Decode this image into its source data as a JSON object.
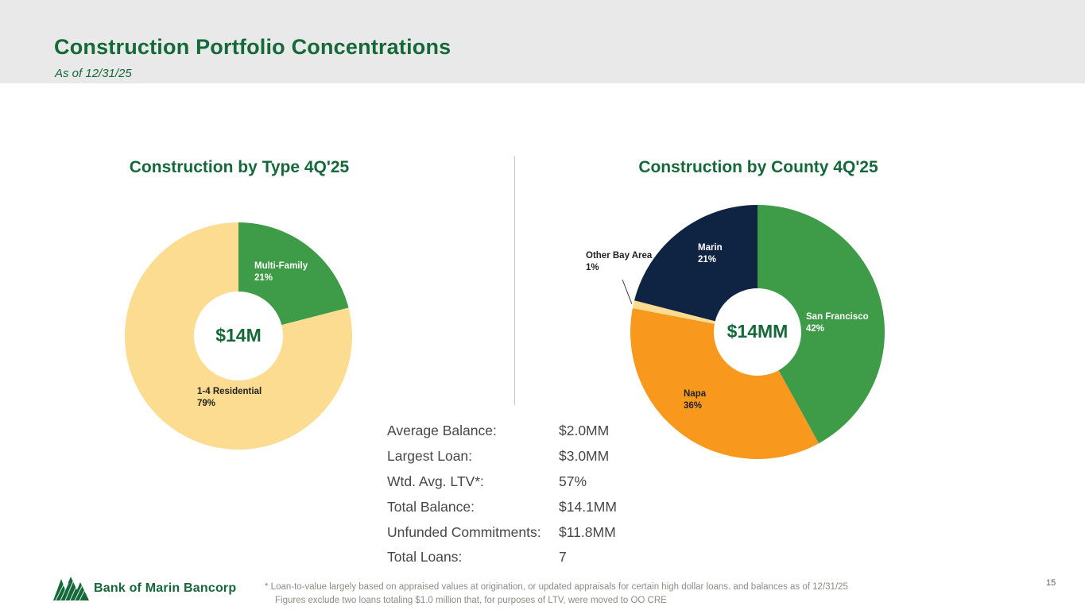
{
  "slide": {
    "title": "Construction Portfolio Concentrations",
    "subtitle": "As of 12/31/25",
    "page_number": "15"
  },
  "chart_data": [
    {
      "type": "pie",
      "title": "Construction by Type 4Q'25",
      "center_label": "$14M",
      "units": "percent of portfolio",
      "slices": [
        {
          "label": "Multi-Family",
          "value": 21,
          "color": "#3e9b47",
          "label_color": "#ffffff",
          "label_pos": [
            20,
            -85
          ]
        },
        {
          "label": "1-4 Residential",
          "value": 79,
          "color": "#fbdc91",
          "label_color": "#222222",
          "label_pos": [
            -52,
            73
          ]
        }
      ]
    },
    {
      "type": "pie",
      "title": "Construction by County 4Q'25",
      "center_label": "$14MM",
      "units": "percent of portfolio",
      "slices": [
        {
          "label": "San Francisco",
          "value": 42,
          "color": "#3e9b47",
          "label_color": "#ffffff",
          "label_pos": [
            61,
            -16
          ]
        },
        {
          "label": "Napa",
          "value": 36,
          "color": "#f8981d",
          "label_color": "#222222",
          "label_pos": [
            -93,
            81
          ]
        },
        {
          "label": "Other Bay Area",
          "value": 1,
          "color": "#fbdc91",
          "label_color": "#222222",
          "label_pos": [
            -216,
            -93
          ],
          "label_outside": true
        },
        {
          "label": "Marin",
          "value": 21,
          "color": "#0e2442",
          "label_color": "#ffffff",
          "label_pos": [
            -75,
            -103
          ]
        }
      ]
    }
  ],
  "stats": {
    "rows": [
      {
        "label": "Average Balance:",
        "value": "$2.0MM"
      },
      {
        "label": "Largest Loan:",
        "value": "$3.0MM"
      },
      {
        "label": "Wtd. Avg. LTV*:",
        "value": "57%"
      },
      {
        "label": "Total Balance:",
        "value": "$14.1MM"
      },
      {
        "label": "Unfunded Commitments:",
        "value": "$11.8MM"
      },
      {
        "label": "Total Loans:",
        "value": "7"
      }
    ]
  },
  "footer": {
    "logo_text": "Bank of Marin Bancorp",
    "footnote_line1": "*  Loan-to-value largely based on appraised values at origination, or updated appraisals for certain high dollar loans. and balances as of 12/31/25",
    "footnote_line2": "Figures exclude two loans totaling $1.0 million that, for purposes of LTV, were moved to OO CRE"
  }
}
